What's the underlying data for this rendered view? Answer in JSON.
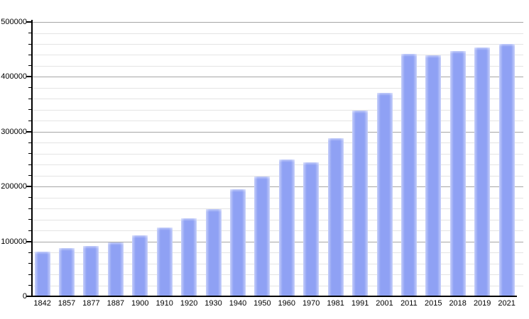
{
  "chart_data": {
    "type": "bar",
    "title": "",
    "xlabel": "",
    "ylabel": "",
    "categories": [
      "1842",
      "1857",
      "1877",
      "1887",
      "1900",
      "1910",
      "1920",
      "1930",
      "1940",
      "1950",
      "1960",
      "1970",
      "1981",
      "1991",
      "2001",
      "2011",
      "2015",
      "2018",
      "2019",
      "2021"
    ],
    "values": [
      81314,
      87803,
      91805,
      98538,
      111693,
      125057,
      141846,
      158724,
      195145,
      218375,
      249771,
      243759,
      288631,
      338250,
      370745,
      441354,
      439712,
      447182,
      453258,
      460349
    ],
    "ylim": [
      0,
      500000
    ],
    "y_major_step": 100000,
    "y_minor_step": 20000,
    "y_tick_labels": [
      "0",
      "100000",
      "200000",
      "300000",
      "400000",
      "500000"
    ],
    "grid": "on",
    "legend_position": "none",
    "colors": {
      "bar_fill": "#8fa1f4",
      "bar_edge_highlight": "#c2cbfa",
      "major_gridline": "#a6a6a6",
      "minor_gridline": "#e4e4e4",
      "axis": "#000000",
      "text": "#000000",
      "background": "#ffffff"
    }
  }
}
